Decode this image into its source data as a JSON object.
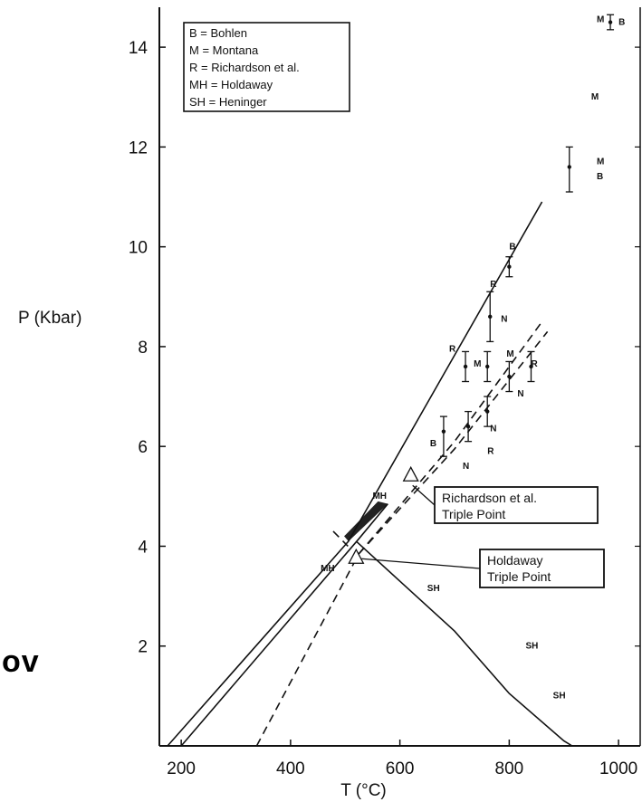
{
  "side_text": "ov",
  "chart_data": {
    "type": "line",
    "xlabel": "T (°C)",
    "ylabel": "P (Kbar)",
    "xlim": [
      160,
      1000
    ],
    "ylim": [
      0,
      14.8
    ],
    "x_ticks": [
      200,
      400,
      600,
      800,
      1000
    ],
    "y_ticks": [
      2,
      4,
      6,
      8,
      10,
      12,
      14
    ],
    "legend": {
      "placement": "top-left",
      "entries": [
        "B = Bohlen",
        "M = Montana",
        "R = Richardson et al.",
        "MH = Holdaway",
        "SH = Heninger"
      ]
    },
    "series": [
      {
        "style": "solid",
        "points": [
          [
            175,
            0
          ],
          [
            506,
            4.1
          ],
          [
            860,
            10.9
          ]
        ]
      },
      {
        "style": "solid",
        "points": [
          [
            200,
            0
          ],
          [
            525,
            4.15
          ],
          [
            578,
            4.85
          ]
        ]
      },
      {
        "style": "solid",
        "points": [
          [
            520,
            4.1
          ],
          [
            600,
            3.3
          ],
          [
            700,
            2.3
          ],
          [
            800,
            1.05
          ],
          [
            900,
            0.1
          ],
          [
            915,
            0
          ]
        ]
      },
      {
        "style": "dashed",
        "points": [
          [
            338,
            0
          ],
          [
            525,
            3.85
          ],
          [
            700,
            6.1
          ],
          [
            860,
            8.5
          ]
        ]
      },
      {
        "style": "dashed",
        "points": [
          [
            525,
            3.85
          ],
          [
            700,
            5.95
          ],
          [
            870,
            8.3
          ]
        ]
      },
      {
        "style": "dashed",
        "points": [
          [
            478,
            4.3
          ],
          [
            505,
            4.0
          ]
        ]
      }
    ],
    "triple_points": [
      {
        "label": "Richardson et al.\nTriple Point",
        "label_lines": [
          "Richardson et al.",
          "Triple Point"
        ],
        "x": 620,
        "y": 5.4
      },
      {
        "label": "Holdaway\nTriple Point",
        "label_lines": [
          "Holdaway",
          "Triple Point"
        ],
        "x": 520,
        "y": 3.75
      }
    ],
    "annotations": [
      {
        "text": "B",
        "x": 800,
        "y": 9.95
      },
      {
        "text": "R",
        "x": 765,
        "y": 9.2
      },
      {
        "text": "N",
        "x": 785,
        "y": 8.5
      },
      {
        "text": "R",
        "x": 690,
        "y": 7.9
      },
      {
        "text": "M",
        "x": 735,
        "y": 7.6
      },
      {
        "text": "M",
        "x": 795,
        "y": 7.8
      },
      {
        "text": "R",
        "x": 840,
        "y": 7.6
      },
      {
        "text": "N",
        "x": 815,
        "y": 7.0
      },
      {
        "text": "N",
        "x": 765,
        "y": 6.3
      },
      {
        "text": "B",
        "x": 655,
        "y": 6.0
      },
      {
        "text": "R",
        "x": 760,
        "y": 5.85
      },
      {
        "text": "N",
        "x": 715,
        "y": 5.55
      },
      {
        "text": "MH",
        "x": 550,
        "y": 4.95
      },
      {
        "text": "MH",
        "x": 455,
        "y": 3.5
      },
      {
        "text": "SH",
        "x": 650,
        "y": 3.1
      },
      {
        "text": "SH",
        "x": 830,
        "y": 1.95
      },
      {
        "text": "SH",
        "x": 880,
        "y": 0.95
      },
      {
        "text": "M",
        "x": 960,
        "y": 14.5
      },
      {
        "text": "B",
        "x": 1000,
        "y": 14.45
      },
      {
        "text": "M",
        "x": 950,
        "y": 12.95
      },
      {
        "text": "M",
        "x": 960,
        "y": 11.65
      },
      {
        "text": "B",
        "x": 960,
        "y": 11.35
      }
    ],
    "error_bars": [
      {
        "x": 800,
        "y": 9.6,
        "low": 9.4,
        "high": 9.8
      },
      {
        "x": 765,
        "y": 8.6,
        "low": 8.1,
        "high": 9.1
      },
      {
        "x": 720,
        "y": 7.6,
        "low": 7.3,
        "high": 7.9
      },
      {
        "x": 760,
        "y": 7.6,
        "low": 7.3,
        "high": 7.9
      },
      {
        "x": 800,
        "y": 7.4,
        "low": 7.1,
        "high": 7.7
      },
      {
        "x": 840,
        "y": 7.6,
        "low": 7.3,
        "high": 7.9
      },
      {
        "x": 680,
        "y": 6.3,
        "low": 5.8,
        "high": 6.6
      },
      {
        "x": 725,
        "y": 6.4,
        "low": 6.1,
        "high": 6.7
      },
      {
        "x": 760,
        "y": 6.7,
        "low": 6.4,
        "high": 7.0
      },
      {
        "x": 910,
        "y": 11.6,
        "low": 11.1,
        "high": 12.0
      },
      {
        "x": 985,
        "y": 14.5,
        "low": 14.35,
        "high": 14.65
      }
    ],
    "grid": false
  }
}
